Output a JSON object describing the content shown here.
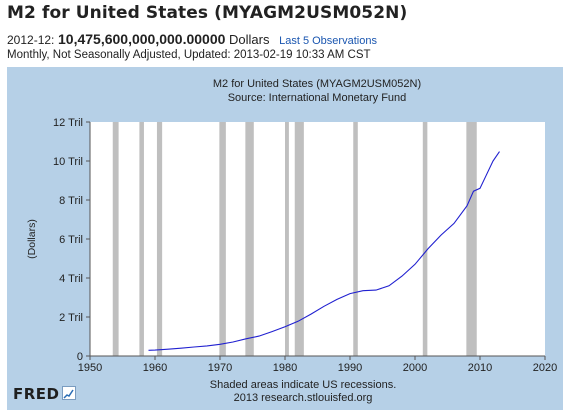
{
  "header": {
    "title": "M2 for United States (MYAGM2USM052N)",
    "period": "2012-12:",
    "value": "10,475,600,000,000.00000",
    "units": "Dollars",
    "observations_link": "Last 5 Observations",
    "meta": "Monthly, Not Seasonally Adjusted, Updated: 2013-02-19 10:33 AM CST"
  },
  "footer": {
    "note": "Shaded areas indicate US recessions.",
    "source": "2013 research.stlouisfed.org",
    "logo": "FRED"
  },
  "colors": {
    "panel": "#b6d0e7",
    "plot_bg": "#ffffff",
    "line": "#2020d0",
    "recession": "#bfbfbf",
    "grid": "#dddddd"
  },
  "chart_data": {
    "type": "line",
    "title": "M2 for United States (MYAGM2USM052N)",
    "subtitle": "Source: International Monetary Fund",
    "xlabel": "",
    "ylabel": "(Dollars)",
    "xlim": [
      1950,
      2020
    ],
    "ylim": [
      0,
      12
    ],
    "x_ticks": [
      1950,
      1960,
      1970,
      1980,
      1990,
      2000,
      2010,
      2020
    ],
    "x_tick_labels": [
      "1950",
      "1960",
      "1970",
      "1980",
      "1990",
      "2000",
      "2010",
      "2020"
    ],
    "y_ticks": [
      0,
      2,
      4,
      6,
      8,
      10,
      12
    ],
    "y_tick_labels": [
      "0",
      "2 Tril",
      "4 Tril",
      "6 Tril",
      "8 Tril",
      "10 Tril",
      "12 Tril"
    ],
    "grid": false,
    "recessions": [
      [
        1953.5,
        1954.4
      ],
      [
        1957.6,
        1958.3
      ],
      [
        1960.3,
        1961.1
      ],
      [
        1969.9,
        1970.9
      ],
      [
        1973.9,
        1975.2
      ],
      [
        1980.0,
        1980.6
      ],
      [
        1981.5,
        1982.9
      ],
      [
        1990.5,
        1991.2
      ],
      [
        2001.2,
        2001.9
      ],
      [
        2007.9,
        2009.5
      ]
    ],
    "series": [
      {
        "x": [
          1959.0,
          1960.0,
          1962.0,
          1964.0,
          1966.0,
          1968.0,
          1970.0,
          1972.0,
          1974.0,
          1976.0,
          1978.0,
          1980.0,
          1982.0,
          1984.0,
          1986.0,
          1988.0,
          1990.0,
          1992.0,
          1994.0,
          1996.0,
          1998.0,
          2000.0,
          2002.0,
          2004.0,
          2006.0,
          2008.0,
          2009.0,
          2010.0,
          2011.0,
          2012.0,
          2013.0
        ],
        "y": [
          0.29,
          0.3,
          0.35,
          0.4,
          0.46,
          0.52,
          0.6,
          0.72,
          0.88,
          1.02,
          1.25,
          1.5,
          1.78,
          2.15,
          2.55,
          2.9,
          3.2,
          3.35,
          3.38,
          3.6,
          4.1,
          4.7,
          5.5,
          6.2,
          6.8,
          7.7,
          8.45,
          8.6,
          9.3,
          10.0,
          10.48
        ]
      }
    ]
  }
}
